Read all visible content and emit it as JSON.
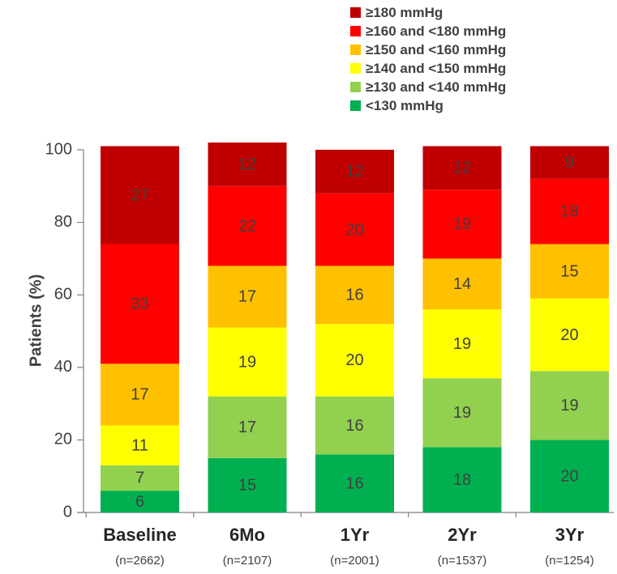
{
  "chart_data": {
    "type": "bar",
    "stacked": true,
    "ylabel": "Patients (%)",
    "ylim": [
      0,
      100
    ],
    "yticks": [
      0,
      20,
      40,
      60,
      80,
      100
    ],
    "categories": [
      "Baseline",
      "6Mo",
      "1Yr",
      "2Yr",
      "3Yr"
    ],
    "category_notes": [
      "(n=2662)",
      "(n=2107)",
      "(n=2001)",
      "(n=1537)",
      "(n=1254)"
    ],
    "legend_position": "top-right",
    "series": [
      {
        "name": "<130 mmHg",
        "color": "#00b050",
        "values": [
          6,
          15,
          16,
          18,
          20
        ]
      },
      {
        "name": "≥130 and <140 mmHg",
        "color": "#92d050",
        "values": [
          7,
          17,
          16,
          19,
          19
        ]
      },
      {
        "name": "≥140 and <150 mmHg",
        "color": "#ffff00",
        "values": [
          11,
          19,
          20,
          19,
          20
        ]
      },
      {
        "name": "≥150 and <160 mmHg",
        "color": "#ffc000",
        "values": [
          17,
          17,
          16,
          14,
          15
        ]
      },
      {
        "name": "≥160 and <180 mmHg",
        "color": "#ff0000",
        "values": [
          33,
          22,
          20,
          19,
          18
        ]
      },
      {
        "name": "≥180 mmHg",
        "color": "#c00000",
        "values": [
          27,
          12,
          12,
          12,
          9
        ]
      }
    ]
  }
}
